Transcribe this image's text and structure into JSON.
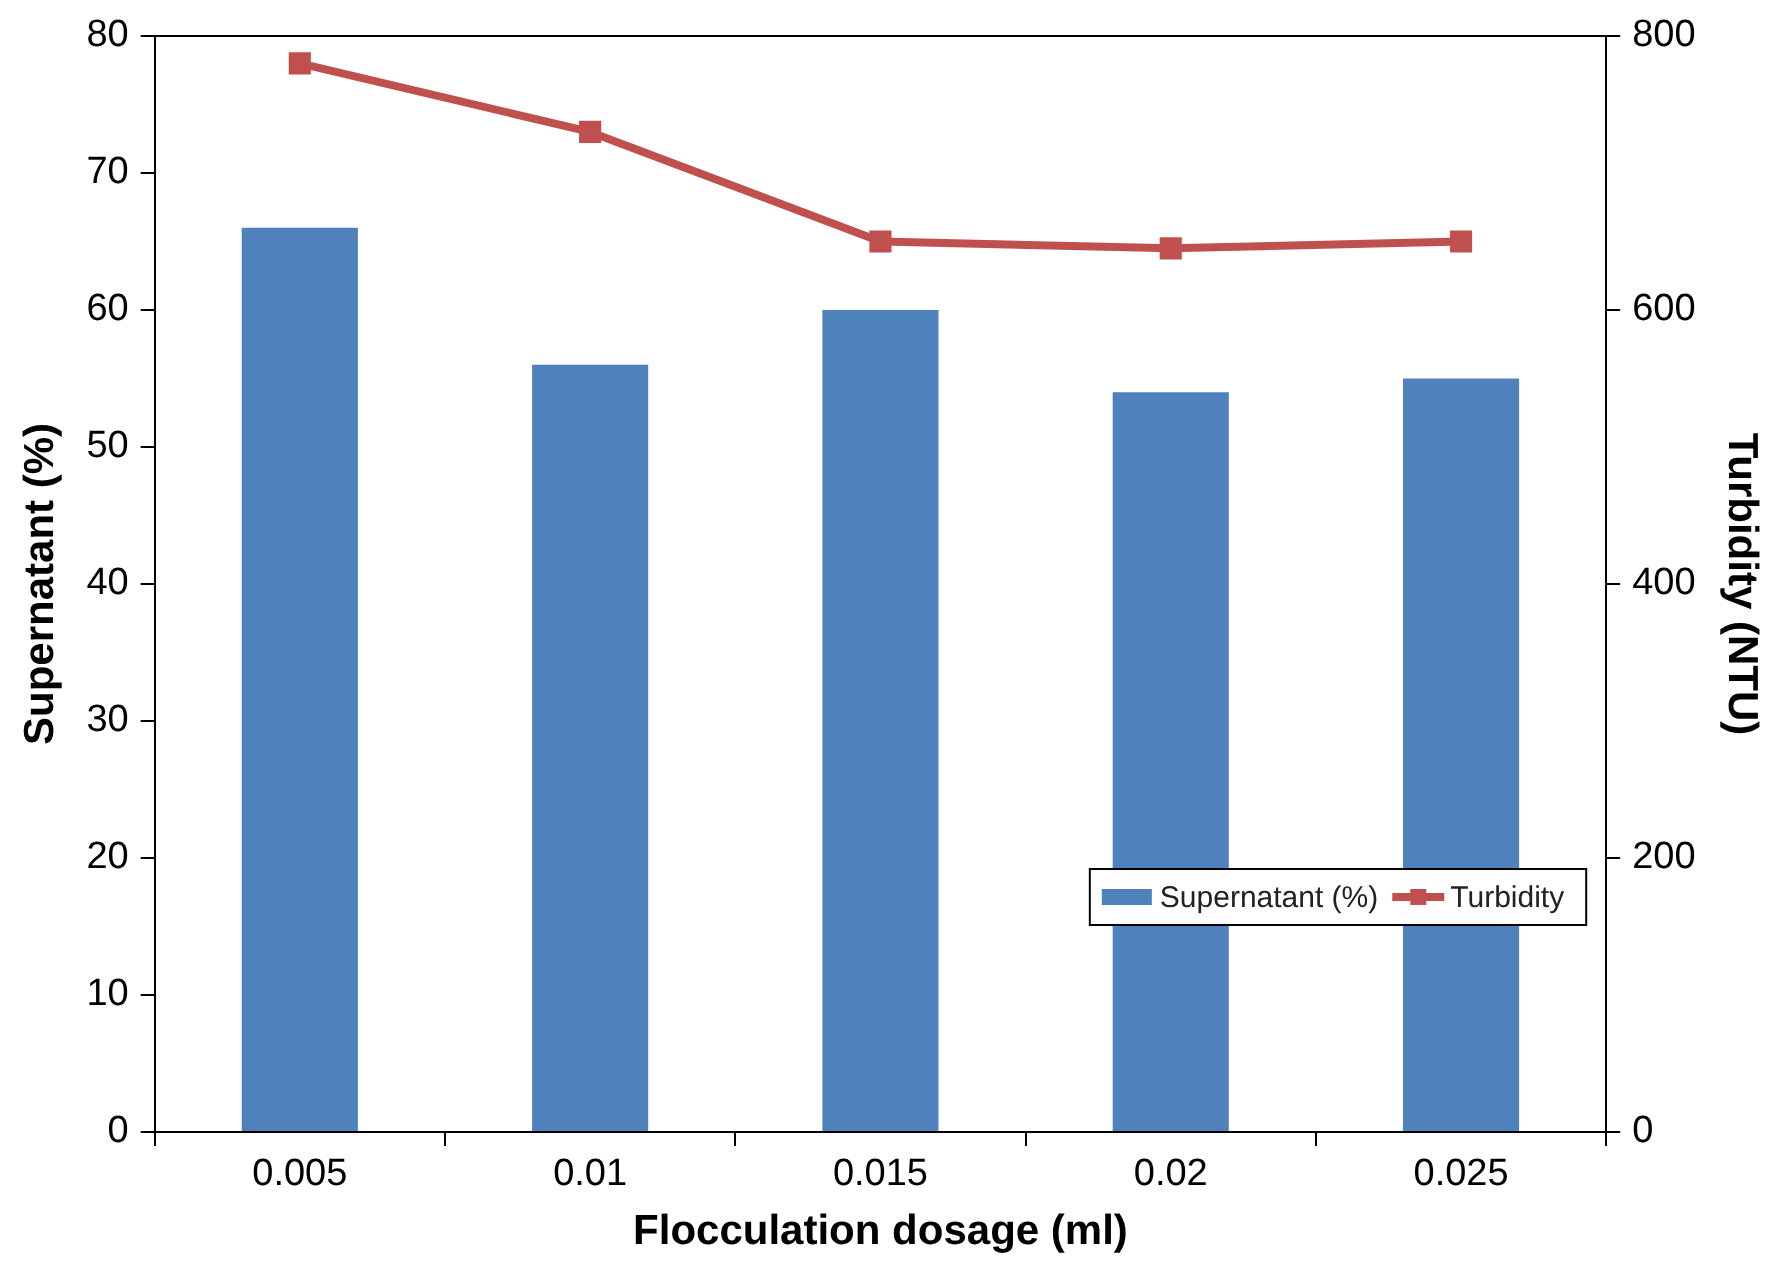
{
  "chart_data": {
    "type": "bar",
    "xlabel": "Flocculation dosage (ml)",
    "ylabel": "Supernatant (%)",
    "y2label": "Turbidity (NTU)",
    "categories": [
      "0.005",
      "0.01",
      "0.015",
      "0.02",
      "0.025"
    ],
    "series": [
      {
        "name": "Supernatant (%)",
        "color": "#4f81bd",
        "values": [
          66,
          56,
          60,
          54,
          55
        ]
      },
      {
        "name": "Turbidity",
        "type": "line",
        "axis": "y2",
        "color": "#c0504d",
        "values": [
          780,
          730,
          650,
          645,
          650
        ]
      }
    ],
    "ylim": [
      0,
      80
    ],
    "yticks": [
      0,
      10,
      20,
      30,
      40,
      50,
      60,
      70,
      80
    ],
    "y2lim": [
      0,
      800
    ],
    "y2ticks": [
      0,
      200,
      400,
      600,
      800
    ],
    "grid": false,
    "legend": "bottom right",
    "marker": "square",
    "line_style": "solid"
  }
}
